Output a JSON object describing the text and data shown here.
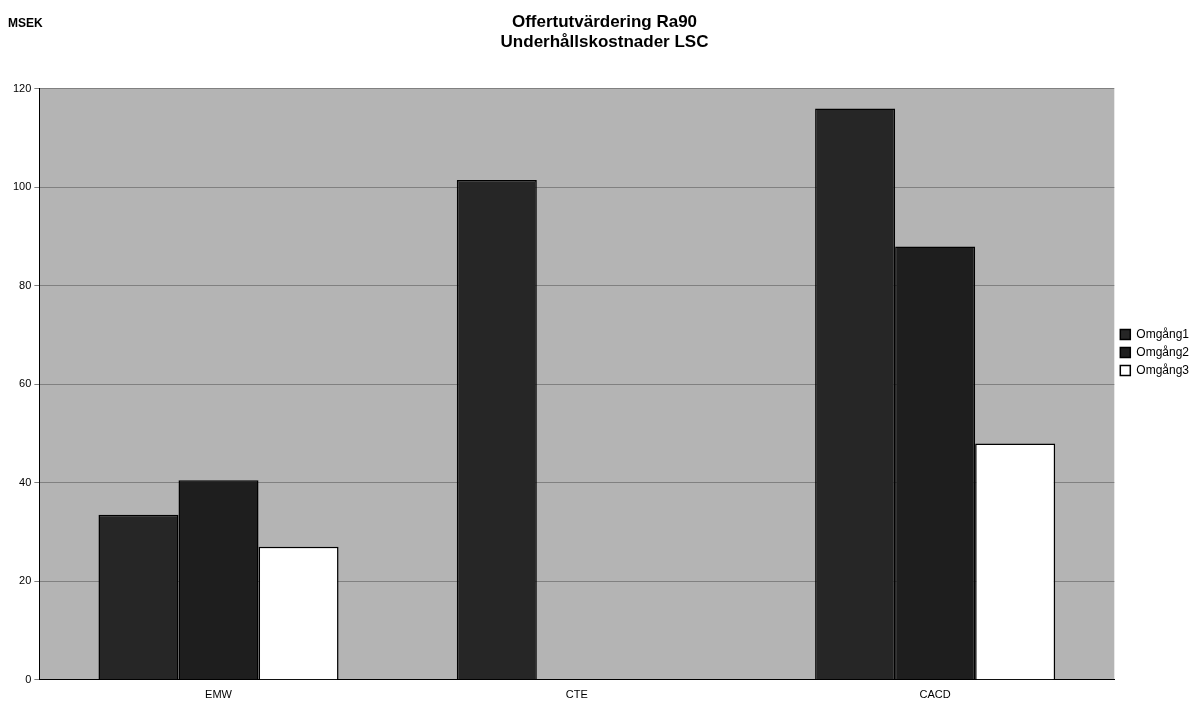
{
  "chart_data": {
    "type": "bar",
    "title": "Offertutvärdering Ra90",
    "subtitle": "Underhållskostnader LSC",
    "ylabel": "MSEK",
    "categories": [
      "EMW",
      "CTE",
      "CACD"
    ],
    "series": [
      {
        "name": "Omgång1",
        "color": "#262626",
        "values": [
          33.5,
          101.5,
          116
        ]
      },
      {
        "name": "Omgång2",
        "color": "#1e1e1e",
        "values": [
          40.5,
          null,
          88
        ]
      },
      {
        "name": "Omgång3",
        "color": "#ffffff",
        "values": [
          27,
          null,
          48
        ]
      }
    ],
    "ylim": [
      0,
      120
    ],
    "yticks": [
      0,
      20,
      40,
      60,
      80,
      100,
      120
    ],
    "grid": "y",
    "legend": "right"
  }
}
